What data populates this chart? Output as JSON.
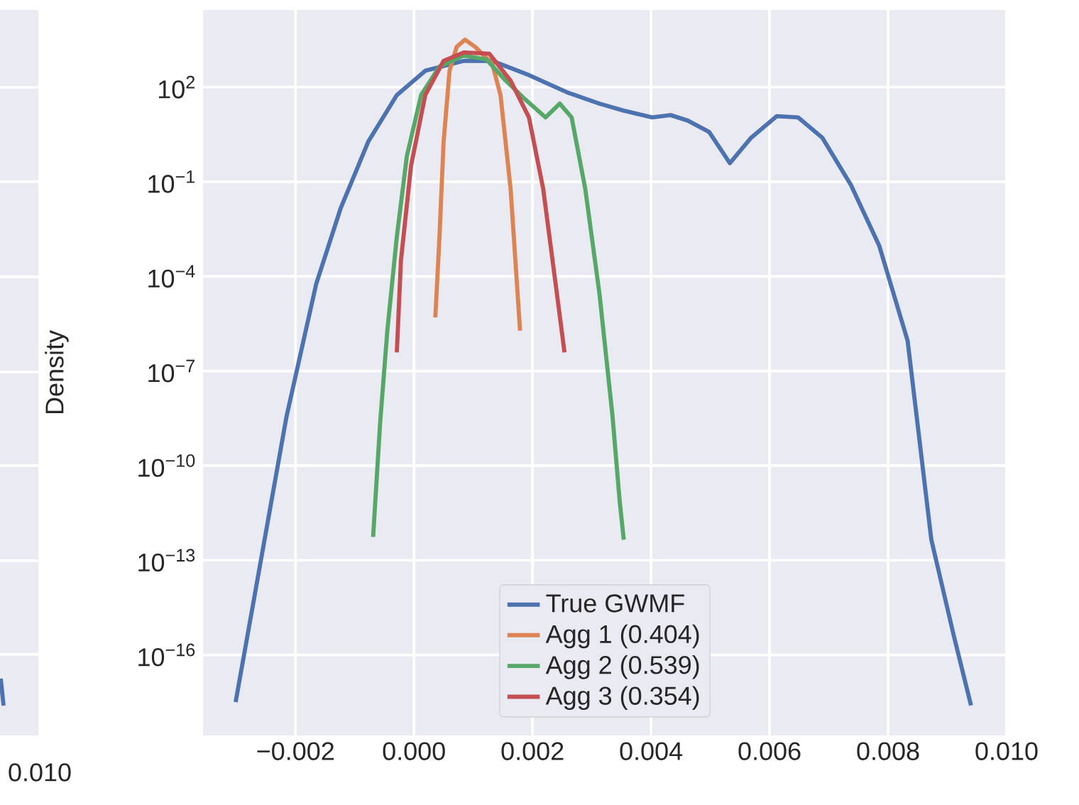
{
  "chart_data": [
    {
      "type": "other",
      "annotations": [
        "0.010"
      ]
    },
    {
      "type": "line",
      "ylabel": "Density",
      "xlim": [
        -0.00356,
        0.01
      ],
      "ylim": [
        2.8e-19,
        28000.0
      ],
      "log": "y",
      "grid": true,
      "legend": "bottom",
      "xticks": [
        {
          "value": -0.002,
          "label": "−0.002"
        },
        {
          "value": 0.0,
          "label": "0.000"
        },
        {
          "value": 0.002,
          "label": "0.002"
        },
        {
          "value": 0.004,
          "label": "0.004"
        },
        {
          "value": 0.006,
          "label": "0.006"
        },
        {
          "value": 0.008,
          "label": "0.008"
        },
        {
          "value": 0.01,
          "label": "0.010"
        }
      ],
      "yticks": [
        {
          "value": 100.0,
          "label": "10$^{2}$"
        },
        {
          "value": 0.1,
          "label": "10$^{−1}$"
        },
        {
          "value": 0.0001,
          "label": "10$^{−4}$"
        },
        {
          "value": 1e-07,
          "label": "10$^{−7}$"
        },
        {
          "value": 1e-10,
          "label": "10$^{−10}$"
        },
        {
          "value": 1e-13,
          "label": "10$^{−13}$"
        },
        {
          "value": 1e-16,
          "label": "10$^{−16}$"
        }
      ],
      "series": [
        {
          "name": "True GWMF",
          "color": "#4c72b0",
          "x": [
            -0.00301,
            -0.00215,
            -0.00165,
            -0.00124,
            -0.00077,
            -0.00029,
            0.00019,
            0.00084,
            0.00132,
            0.00194,
            0.00258,
            0.00313,
            0.00354,
            0.00402,
            0.00433,
            0.00462,
            0.00498,
            0.00533,
            0.00569,
            0.00612,
            0.00648,
            0.00689,
            0.00737,
            0.00785,
            0.00833,
            0.00873,
            0.00911,
            0.0094
          ],
          "values": [
            3.2e-18,
            3.7e-09,
            5.8e-05,
            0.014,
            1.9,
            56,
            330,
            680,
            680,
            240,
            69,
            30,
            18,
            11,
            13,
            8.7,
            3.8,
            0.39,
            2.5,
            12,
            11,
            2.5,
            0.081,
            0.00095,
            9.1e-07,
            4.5e-13,
            4e-16,
            2.5e-18
          ]
        },
        {
          "name": "Agg 1 (0.404)",
          "color": "#dd8452",
          "x": [
            0.00036,
            0.00043,
            0.0005,
            0.0006,
            0.00072,
            0.00086,
            0.00103,
            0.00132,
            0.00146,
            0.00163,
            0.00179
          ],
          "values": [
            5e-06,
            0.0018,
            1.9,
            330,
            1900,
            3200,
            1900,
            550,
            56,
            0.06,
            1.9e-06
          ]
        },
        {
          "name": "Agg 2 (0.539)",
          "color": "#55a868",
          "x": [
            -0.00069,
            -0.00057,
            -0.00045,
            -0.00029,
            -0.00012,
            0.00012,
            0.00043,
            0.00084,
            0.00122,
            0.00155,
            0.00187,
            0.00222,
            0.00246,
            0.00266,
            0.00289,
            0.00313,
            0.00335,
            0.00347,
            0.00354
          ],
          "values": [
            5.5e-13,
            2.5e-09,
            1.9e-06,
            0.0018,
            0.66,
            56,
            450,
            1000,
            760,
            160,
            42,
            11,
            30,
            11,
            0.06,
            2.8e-05,
            3.7e-09,
            7.9e-12,
            4.5e-13
          ]
        },
        {
          "name": "Agg 3 (0.354)",
          "color": "#c44e52",
          "x": [
            -0.00029,
            -0.00022,
            -5e-05,
            0.00019,
            0.0005,
            0.00084,
            0.00127,
            0.00163,
            0.00194,
            0.00218,
            0.00239,
            0.00254
          ],
          "values": [
            3.9e-07,
            0.00032,
            0.32,
            56,
            680,
            1260,
            1150,
            160,
            11,
            0.06,
            5.8e-05,
            3.9e-07
          ]
        }
      ]
    }
  ]
}
